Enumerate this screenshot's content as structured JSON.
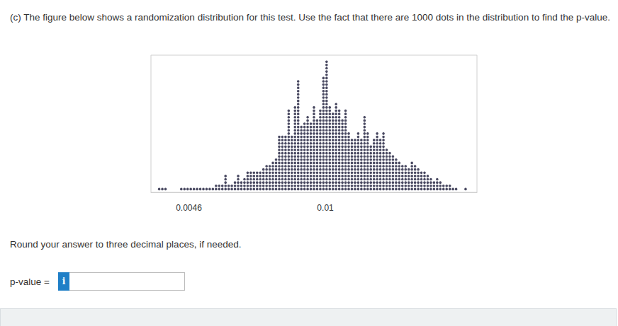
{
  "question": "(c) The figure below shows a randomization distribution for this test. Use the fact that there are 1000 dots in the distribution to find the p-value.",
  "instruction": "Round your answer to three decimal places, if needed.",
  "answer_label": "p-value =",
  "info_icon": "i",
  "chart_data": {
    "type": "dotplot",
    "x": [
      0.0033,
      0.003425,
      0.00355,
      0.003675,
      0.0038,
      0.003925,
      0.00405,
      0.004175,
      0.0043,
      0.004425,
      0.00455,
      0.004675,
      0.0048,
      0.004925,
      0.00505,
      0.005175,
      0.0053,
      0.005425,
      0.00555,
      0.005675,
      0.0058,
      0.005925,
      0.00605,
      0.006175,
      0.0063,
      0.006425,
      0.00655,
      0.006675,
      0.0068,
      0.006925,
      0.00705,
      0.007175,
      0.0073,
      0.007425,
      0.00755,
      0.007675,
      0.0078,
      0.007925,
      0.00805,
      0.008175,
      0.0083,
      0.008425,
      0.00855,
      0.008675,
      0.0088,
      0.008925,
      0.00905,
      0.009175,
      0.0093,
      0.009425,
      0.00955,
      0.009675,
      0.0098,
      0.009925,
      0.01005,
      0.010175,
      0.0103,
      0.010425,
      0.01055,
      0.010675,
      0.0108,
      0.010925,
      0.01105,
      0.011175,
      0.0113,
      0.011425,
      0.01155,
      0.011675,
      0.0118,
      0.011925,
      0.01205,
      0.012175,
      0.0123,
      0.012425,
      0.01255,
      0.012675,
      0.0128,
      0.012925,
      0.01305,
      0.013175,
      0.0133,
      0.013425,
      0.01355,
      0.013675,
      0.0138,
      0.013925,
      0.01405,
      0.014175,
      0.0143,
      0.014425,
      0.01455,
      0.014675,
      0.0148,
      0.014925,
      0.01505,
      0.015175,
      0.0153,
      0.015425,
      0.01555,
      0.015675
    ],
    "counts": [
      0,
      1,
      1,
      1,
      0,
      0,
      0,
      0,
      1,
      1,
      1,
      1,
      1,
      1,
      1,
      1,
      1,
      1,
      1,
      2,
      2,
      2,
      5,
      2,
      2,
      3,
      5,
      3,
      4,
      6,
      6,
      6,
      6,
      6,
      7,
      8,
      8,
      9,
      10,
      17,
      17,
      17,
      25,
      17,
      26,
      34,
      20,
      21,
      23,
      21,
      26,
      22,
      25,
      35,
      40,
      26,
      24,
      27,
      25,
      22,
      25,
      18,
      16,
      16,
      18,
      16,
      23,
      18,
      14,
      16,
      18,
      16,
      18,
      13,
      12,
      11,
      10,
      9,
      8,
      8,
      7,
      9,
      8,
      7,
      6,
      6,
      5,
      4,
      3,
      4,
      3,
      2,
      2,
      2,
      1,
      1,
      0,
      0,
      1,
      0
    ],
    "xlim": [
      0.0031,
      0.016
    ],
    "xticks": [
      0.0046,
      0.01
    ],
    "ylim": [
      0,
      42
    ],
    "tick_labels": "x",
    "grid": false,
    "marker": "circle",
    "color": "#1c1c3a"
  }
}
